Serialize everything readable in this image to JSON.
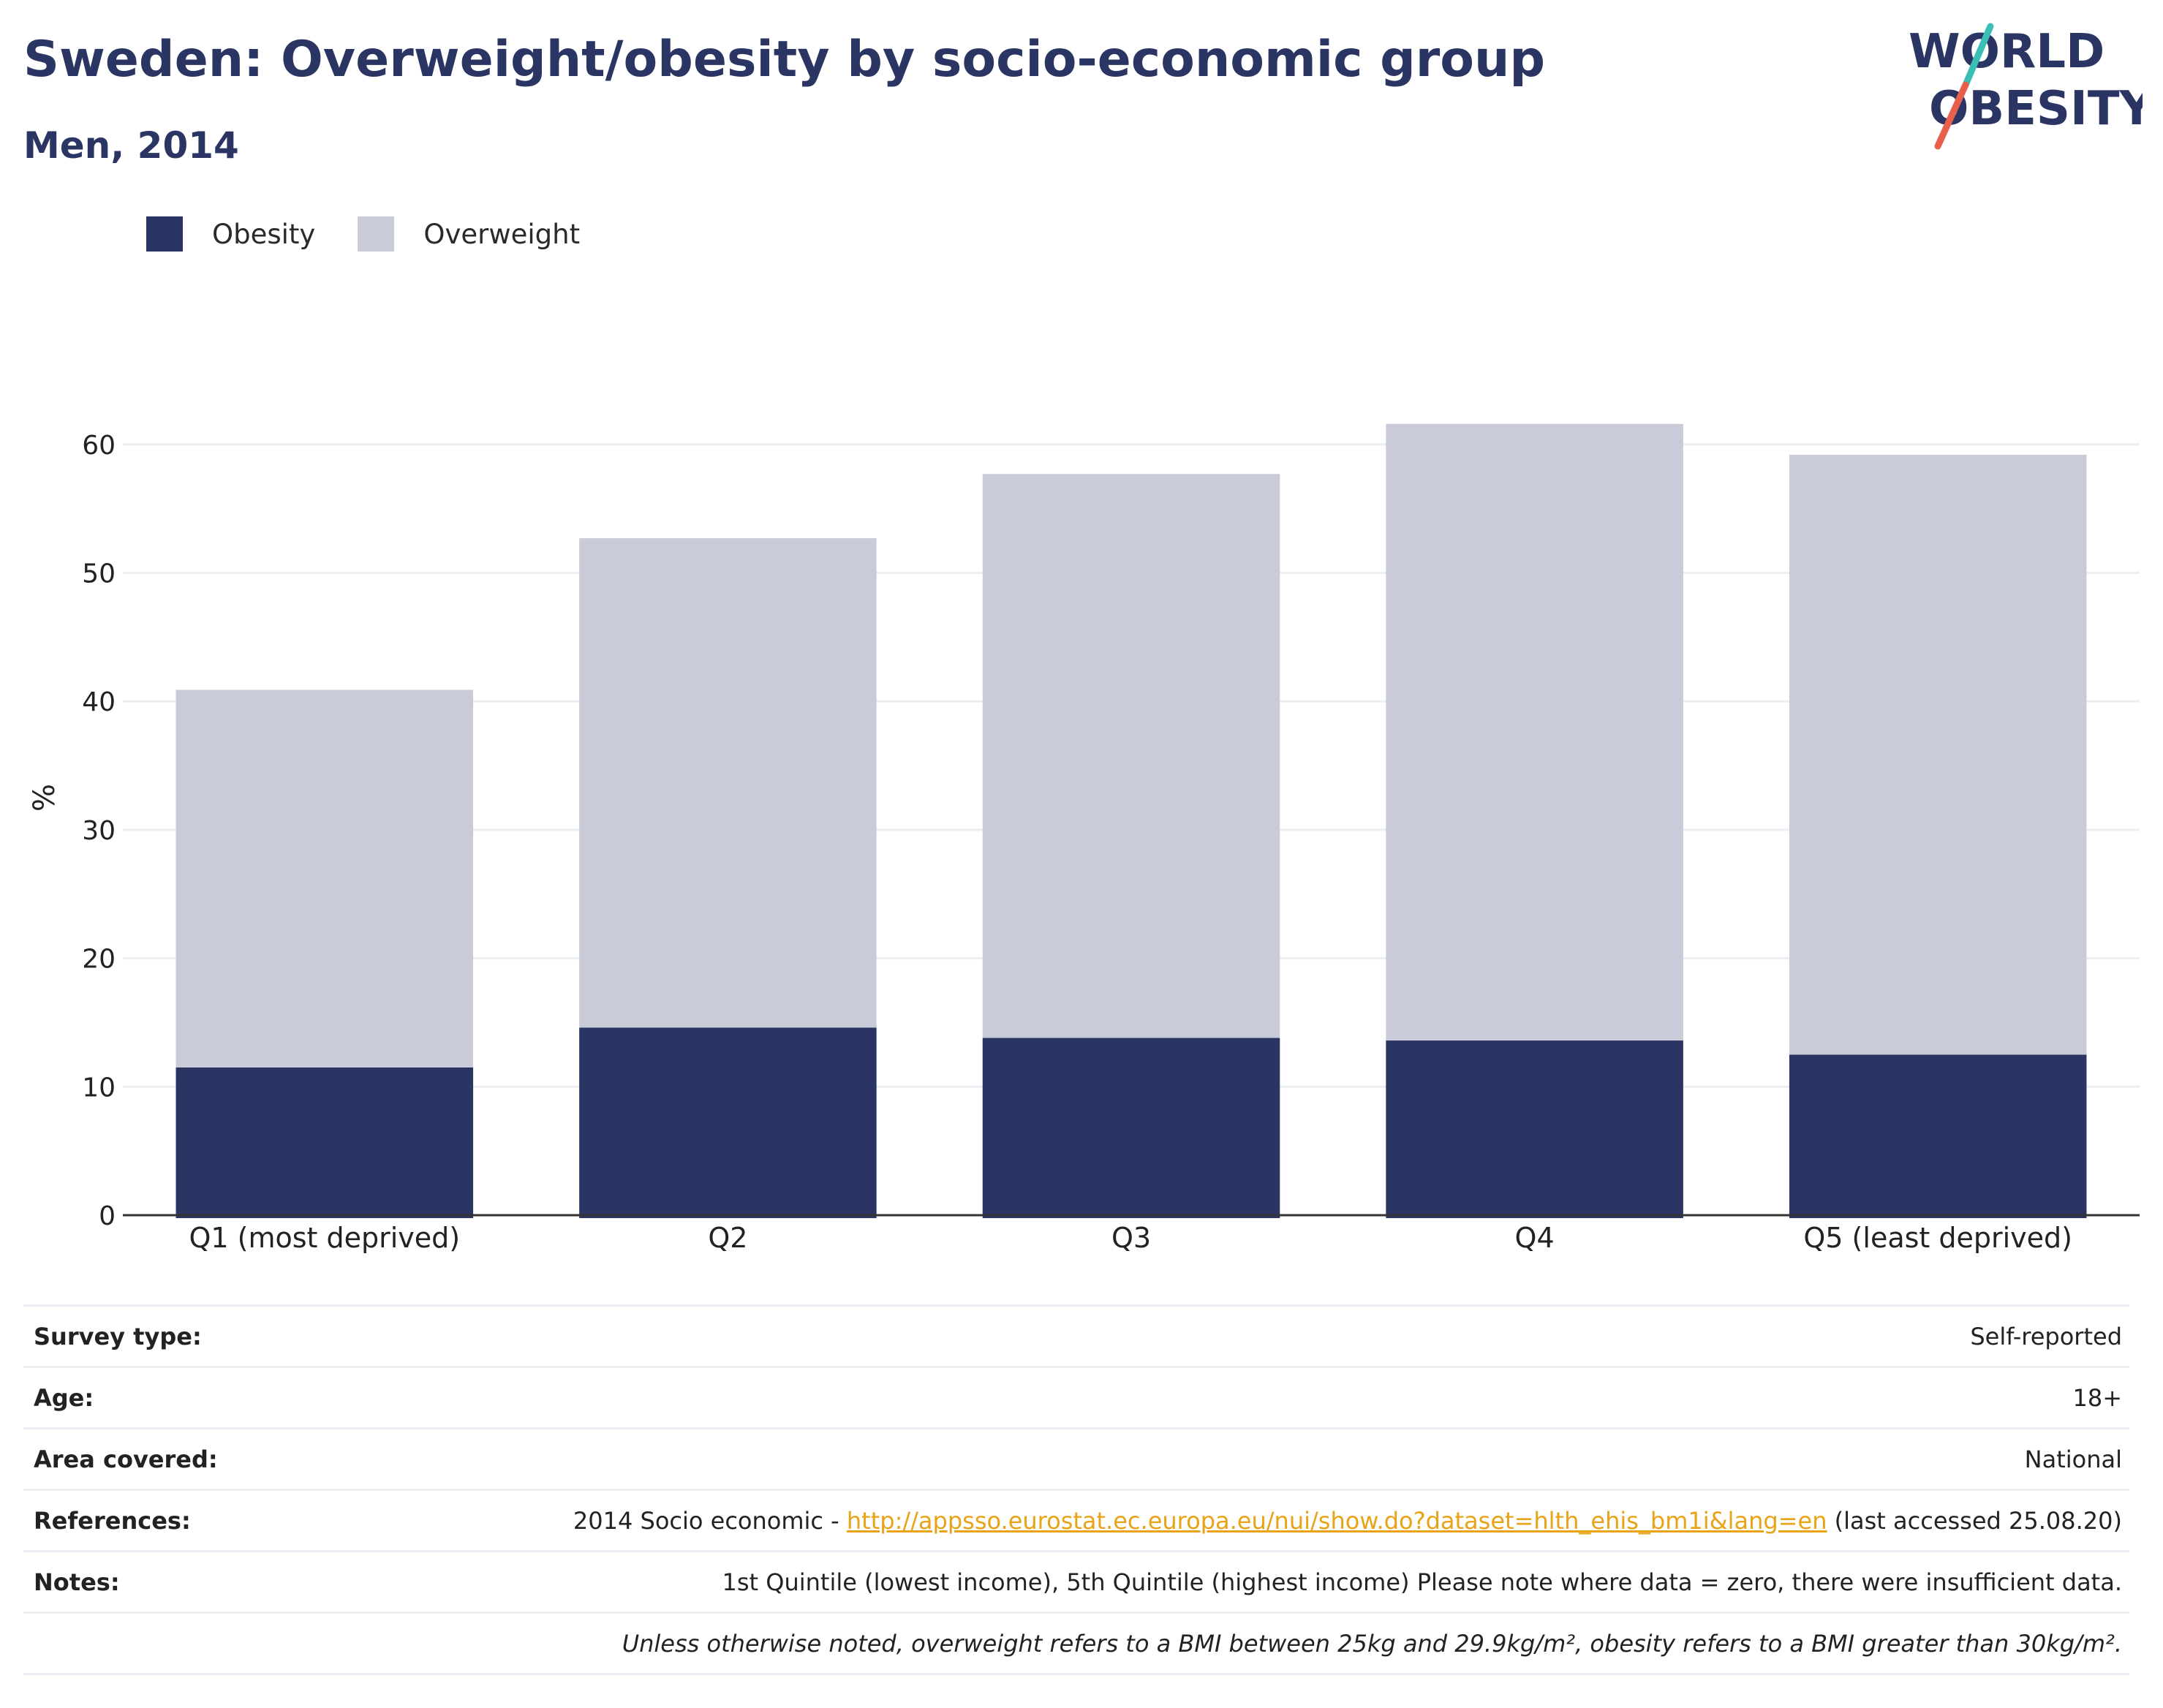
{
  "header": {
    "title": "Sweden: Overweight/obesity by socio-economic group",
    "subtitle": "Men, 2014"
  },
  "logo": {
    "line1": "WORLD",
    "line2": "OBESITY",
    "colors": {
      "teal": "#3bbfb5",
      "coral": "#e8604c",
      "navy": "#2a3563"
    }
  },
  "legend": {
    "items": [
      {
        "label": "Obesity",
        "color": "#2a3563"
      },
      {
        "label": "Overweight",
        "color": "#c9ccd8"
      }
    ]
  },
  "chart_data": {
    "type": "bar",
    "stacked": true,
    "categories": [
      "Q1 (most deprived)",
      "Q2",
      "Q3",
      "Q4",
      "Q5 (least deprived)"
    ],
    "series": [
      {
        "name": "Obesity",
        "color": "#2a3563",
        "values": [
          11.5,
          14.6,
          13.8,
          13.6,
          12.5
        ]
      },
      {
        "name": "Overweight",
        "color": "#c9ccd8",
        "values": [
          29.4,
          38.1,
          43.9,
          48.0,
          46.7
        ]
      }
    ],
    "ylabel": "%",
    "ylim": [
      0,
      65
    ],
    "yticks": [
      0,
      10,
      20,
      30,
      40,
      50,
      60
    ],
    "grid": true,
    "legend_position": "top-left"
  },
  "info": {
    "survey_type": {
      "label": "Survey type:",
      "value": "Self-reported"
    },
    "age": {
      "label": "Age:",
      "value": "18+"
    },
    "area": {
      "label": "Area covered:",
      "value": "National"
    },
    "references": {
      "label": "References:",
      "prefix": "2014 Socio economic - ",
      "link": "http://appsso.eurostat.ec.europa.eu/nui/show.do?dataset=hlth_ehis_bm1i&lang=en",
      "suffix": " (last accessed 25.08.20)"
    },
    "notes": {
      "label": "Notes:",
      "value": "1st Quintile (lowest income), 5th Quintile (highest income) Please note where data = zero, there were insufficient data."
    },
    "footnote": "Unless otherwise noted, overweight refers to a BMI between 25kg and 29.9kg/m², obesity refers to a BMI greater than 30kg/m²."
  }
}
